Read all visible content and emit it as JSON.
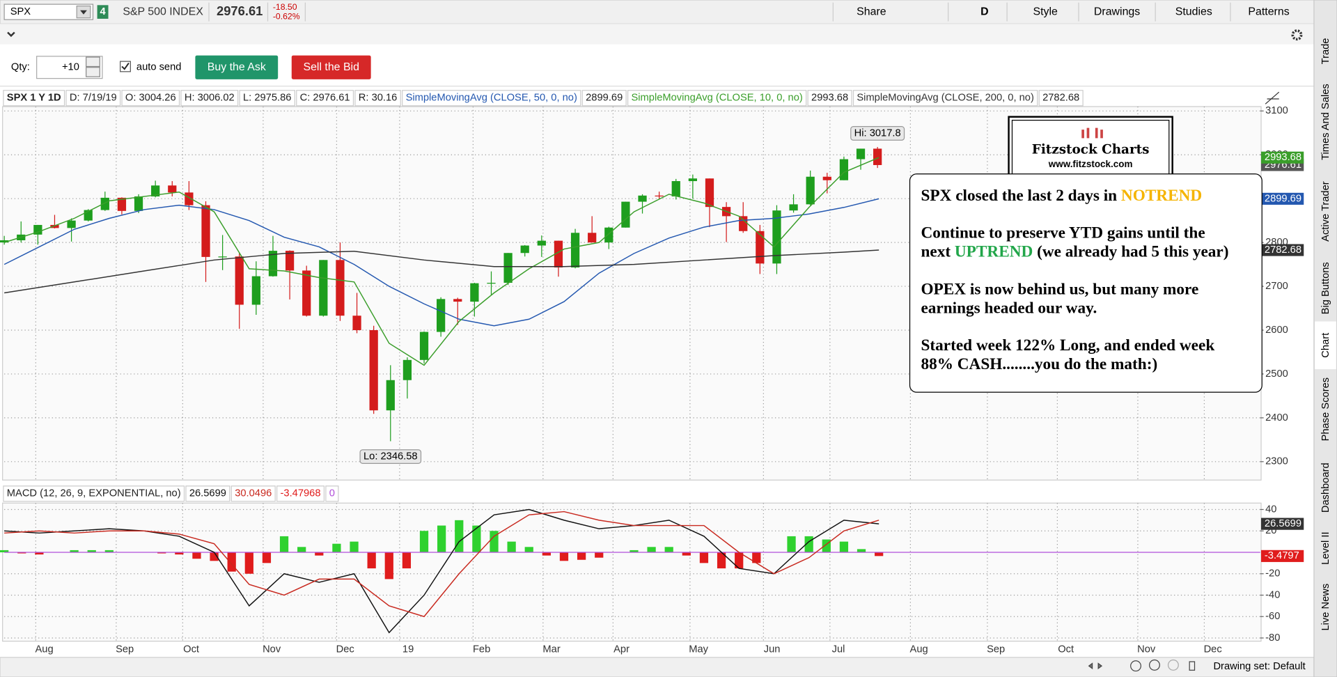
{
  "toolbar": {
    "symbol": "SPX",
    "link": "4",
    "description": "S&P 500 INDEX",
    "last": "2976.61",
    "change": "-18.50",
    "change_pct": "-0.62%",
    "buttons": [
      "Share",
      "D",
      "Style",
      "Drawings",
      "Studies",
      "Patterns"
    ]
  },
  "order_bar": {
    "qty_label": "Qty:",
    "qty": "+10",
    "auto_send": "auto send",
    "buy": "Buy the Ask",
    "sell": "Sell the Bid"
  },
  "side_tabs": [
    "Trade",
    "Times And Sales",
    "Active Trader",
    "Big Buttons",
    "Chart",
    "Phase Scores",
    "Dashboard",
    "Level II",
    "Live News"
  ],
  "status": "Drawing set: Default",
  "logo": {
    "title": "Fitzstock Charts",
    "url": "www.fitzstock.com"
  },
  "note": {
    "paragraphs": [
      [
        [
          {
            "text": "SPX closed the last 2 days in "
          },
          {
            "text": "NOTREND",
            "color": "#f5b400"
          }
        ]
      ],
      [
        [
          {
            "text": "Continue to preserve YTD gains until the"
          }
        ],
        [
          {
            "text": "next "
          },
          {
            "text": "UPTREND",
            "color": "#22a64a"
          },
          {
            "text": " (we already had 5 this year)"
          }
        ]
      ],
      [
        [
          {
            "text": "OPEX is now behind us, but many more"
          }
        ],
        [
          {
            "text": "earnings headed our way."
          }
        ]
      ],
      [
        [
          {
            "text": "Started week 122% Long, and ended week"
          }
        ],
        [
          {
            "text": "88% CASH........you do the math:)"
          }
        ]
      ]
    ]
  },
  "chart_data": [
    {
      "type": "candlestick",
      "header": [
        "SPX 1 Y 1D",
        "D: 7/19/19",
        "O: 3004.26",
        "H: 3006.02",
        "L: 2975.86",
        "C: 2976.61",
        "R: 30.16"
      ],
      "high_label": "Hi: 3017.8",
      "low_label": "Lo: 2346.58",
      "up_color": "#1e9e1e",
      "down_color": "#d41c1c",
      "grid": true,
      "x": [
        0,
        4.8,
        9.6,
        14.4,
        19.2,
        24,
        28.8,
        33.6,
        38.4,
        43.2,
        48,
        52.8,
        57.6,
        62.4,
        67.2,
        72,
        76.8,
        81.6,
        86.4,
        91.2,
        96,
        100.8,
        105.6,
        110.4,
        115.2,
        120,
        124.8,
        129.6,
        134.4,
        139.2,
        144,
        148.8,
        153.6,
        158.4,
        163.2,
        168,
        172.8,
        177.6,
        182.4,
        187.2,
        192,
        196.8,
        201.6,
        206.4,
        211.2,
        216,
        220.8,
        225.6,
        230.4,
        235.2,
        240,
        244.8,
        249.6
      ],
      "open": [
        2800,
        2805,
        2818,
        2840,
        2833,
        2850,
        2874,
        2902,
        2872,
        2905,
        2930,
        2914,
        2885,
        2767,
        2768,
        2658,
        2723,
        2781,
        2736,
        2633,
        2760,
        2633,
        2600,
        2417,
        2486,
        2532,
        2596,
        2671,
        2665,
        2707,
        2708,
        2776,
        2793,
        2804,
        2743,
        2822,
        2800,
        2834,
        2893,
        2907,
        2905,
        2940,
        2946,
        2881,
        2860,
        2826,
        2752,
        2873,
        2887,
        2950,
        2942,
        2990,
        3014
      ],
      "high": [
        2815,
        2848,
        2840,
        2863,
        2855,
        2876,
        2916,
        2903,
        2910,
        2941,
        2940,
        2940,
        2894,
        2817,
        2777,
        2757,
        2815,
        2782,
        2747,
        2760,
        2800,
        2685,
        2610,
        2520,
        2538,
        2597,
        2675,
        2674,
        2708,
        2734,
        2776,
        2794,
        2816,
        2804,
        2831,
        2860,
        2836,
        2893,
        2910,
        2916,
        2945,
        2955,
        2946,
        2892,
        2892,
        2840,
        2885,
        2910,
        2964,
        2959,
        2996,
        3014,
        3017.8
      ],
      "low": [
        2795,
        2800,
        2795,
        2832,
        2802,
        2848,
        2872,
        2864,
        2867,
        2903,
        2905,
        2874,
        2710,
        2737,
        2603,
        2635,
        2722,
        2670,
        2631,
        2631,
        2621,
        2593,
        2409,
        2346.58,
        2444,
        2524,
        2585,
        2612,
        2631,
        2681,
        2703,
        2768,
        2767,
        2722,
        2741,
        2800,
        2785,
        2834,
        2866,
        2898,
        2898,
        2900,
        2835,
        2801,
        2822,
        2728,
        2728,
        2868,
        2885,
        2912,
        2942,
        2966,
        2970
      ],
      "close": [
        2805,
        2818,
        2840,
        2833,
        2850,
        2874,
        2902,
        2872,
        2905,
        2930,
        2914,
        2885,
        2767,
        2768,
        2658,
        2723,
        2781,
        2736,
        2633,
        2760,
        2633,
        2600,
        2417,
        2486,
        2532,
        2596,
        2671,
        2665,
        2707,
        2708,
        2776,
        2793,
        2804,
        2743,
        2822,
        2800,
        2834,
        2893,
        2907,
        2905,
        2940,
        2946,
        2881,
        2860,
        2826,
        2752,
        2873,
        2887,
        2950,
        2942,
        2990,
        3014,
        2976.61
      ],
      "series": [
        {
          "name": "SimpleMovingAvg (CLOSE, 50, 0, no)",
          "color": "#2458b0",
          "x": [
            0,
            10,
            20,
            30,
            40,
            50,
            60,
            70,
            80,
            90,
            100,
            110,
            120,
            130,
            140,
            150,
            160,
            170,
            180,
            190,
            200,
            210,
            220,
            230,
            240,
            250
          ],
          "values": [
            2750,
            2790,
            2830,
            2855,
            2875,
            2885,
            2875,
            2850,
            2812,
            2790,
            2750,
            2700,
            2660,
            2625,
            2610,
            2625,
            2665,
            2730,
            2775,
            2810,
            2835,
            2850,
            2855,
            2865,
            2880,
            2899.69
          ]
        },
        {
          "name": "SimpleMovingAvg (CLOSE, 10, 0, no)",
          "color": "#3a9e2a",
          "x": [
            0,
            10,
            20,
            30,
            40,
            50,
            60,
            70,
            80,
            90,
            100,
            110,
            120,
            130,
            140,
            150,
            160,
            170,
            180,
            190,
            200,
            210,
            220,
            230,
            240,
            250
          ],
          "values": [
            2800,
            2825,
            2855,
            2895,
            2905,
            2915,
            2870,
            2740,
            2735,
            2720,
            2710,
            2570,
            2520,
            2620,
            2685,
            2740,
            2785,
            2800,
            2870,
            2910,
            2890,
            2860,
            2790,
            2880,
            2960,
            2993.68
          ]
        },
        {
          "name": "SimpleMovingAvg (CLOSE, 200, 0, no)",
          "color": "#333333",
          "x": [
            0,
            20,
            40,
            60,
            80,
            100,
            120,
            140,
            160,
            180,
            200,
            220,
            240,
            250
          ],
          "values": [
            2685,
            2710,
            2735,
            2760,
            2775,
            2780,
            2760,
            2745,
            2745,
            2750,
            2760,
            2770,
            2778,
            2782.68
          ]
        }
      ],
      "xlim": [
        0,
        359
      ],
      "ylim": [
        2260,
        3110
      ],
      "yticks": [
        2300,
        2400,
        2500,
        2600,
        2700,
        2800,
        2900,
        3000,
        3100
      ],
      "xticks": [
        {
          "value": 9,
          "label": "Aug"
        },
        {
          "value": 32,
          "label": "Sep"
        },
        {
          "value": 51,
          "label": "Oct"
        },
        {
          "value": 74,
          "label": "Nov"
        },
        {
          "value": 95,
          "label": "Dec"
        },
        {
          "value": 113,
          "label": "19"
        },
        {
          "value": 134,
          "label": "Feb"
        },
        {
          "value": 154,
          "label": "Mar"
        },
        {
          "value": 174,
          "label": "Apr"
        },
        {
          "value": 196,
          "label": "May"
        },
        {
          "value": 217,
          "label": "Jun"
        },
        {
          "value": 236,
          "label": "Jul"
        },
        {
          "value": 259,
          "label": "Aug"
        },
        {
          "value": 281,
          "label": "Sep"
        },
        {
          "value": 301,
          "label": "Oct"
        },
        {
          "value": 324,
          "label": "Nov"
        },
        {
          "value": 343,
          "label": "Dec"
        }
      ]
    },
    {
      "type": "macd",
      "title": "MACD (12, 26, 9, EXPONENTIAL, no)",
      "grid": true,
      "zero_line": 0,
      "zero_color": "#b04fd9",
      "series": [
        {
          "color": "#111111",
          "x": [
            0,
            10,
            20,
            30,
            40,
            50,
            60,
            70,
            80,
            90,
            100,
            110,
            120,
            130,
            140,
            150,
            160,
            170,
            180,
            190,
            200,
            210,
            220,
            230,
            240,
            250
          ],
          "values": [
            20,
            18,
            20,
            22,
            20,
            15,
            0,
            -50,
            -20,
            -28,
            -20,
            -75,
            -40,
            10,
            35,
            40,
            30,
            22,
            25,
            30,
            15,
            -15,
            -20,
            10,
            30,
            26.5699
          ]
        },
        {
          "color": "#c8281e",
          "x": [
            0,
            10,
            20,
            30,
            40,
            50,
            60,
            70,
            80,
            90,
            100,
            110,
            120,
            130,
            140,
            150,
            160,
            170,
            180,
            190,
            200,
            210,
            220,
            230,
            240,
            250
          ],
          "values": [
            18,
            20,
            18,
            20,
            20,
            17,
            8,
            -30,
            -40,
            -25,
            -25,
            -50,
            -60,
            -20,
            15,
            35,
            38,
            30,
            25,
            25,
            25,
            0,
            -20,
            -5,
            20,
            30.0496
          ]
        }
      ],
      "histogram": {
        "positive_color": "#2fd12f",
        "negative_color": "#e01c1c",
        "badge_label": "-3.4797",
        "x": [
          0,
          5,
          10,
          15,
          20,
          25,
          30,
          35,
          40,
          45,
          50,
          55,
          60,
          65,
          70,
          75,
          80,
          85,
          90,
          95,
          100,
          105,
          110,
          115,
          120,
          125,
          130,
          135,
          140,
          145,
          150,
          155,
          160,
          165,
          170,
          175,
          180,
          185,
          190,
          195,
          200,
          205,
          210,
          215,
          220,
          225,
          230,
          235,
          240,
          245,
          250
        ],
        "values": [
          2,
          -1,
          -2,
          0,
          2,
          2,
          2,
          0,
          0,
          -1,
          -2,
          -6,
          -8,
          -18,
          -20,
          -10,
          15,
          5,
          -3,
          8,
          10,
          -15,
          -25,
          -15,
          20,
          25,
          30,
          25,
          20,
          10,
          5,
          -3,
          -8,
          -7,
          -5,
          0,
          2,
          5,
          5,
          -3,
          -10,
          -15,
          -15,
          -10,
          0,
          15,
          15,
          12,
          10,
          3,
          -3.47968
        ]
      },
      "xlim": [
        0,
        359
      ],
      "ylim": [
        -83,
        46
      ],
      "yticks": [
        -80,
        -60,
        -40,
        -20,
        20,
        40
      ]
    }
  ]
}
